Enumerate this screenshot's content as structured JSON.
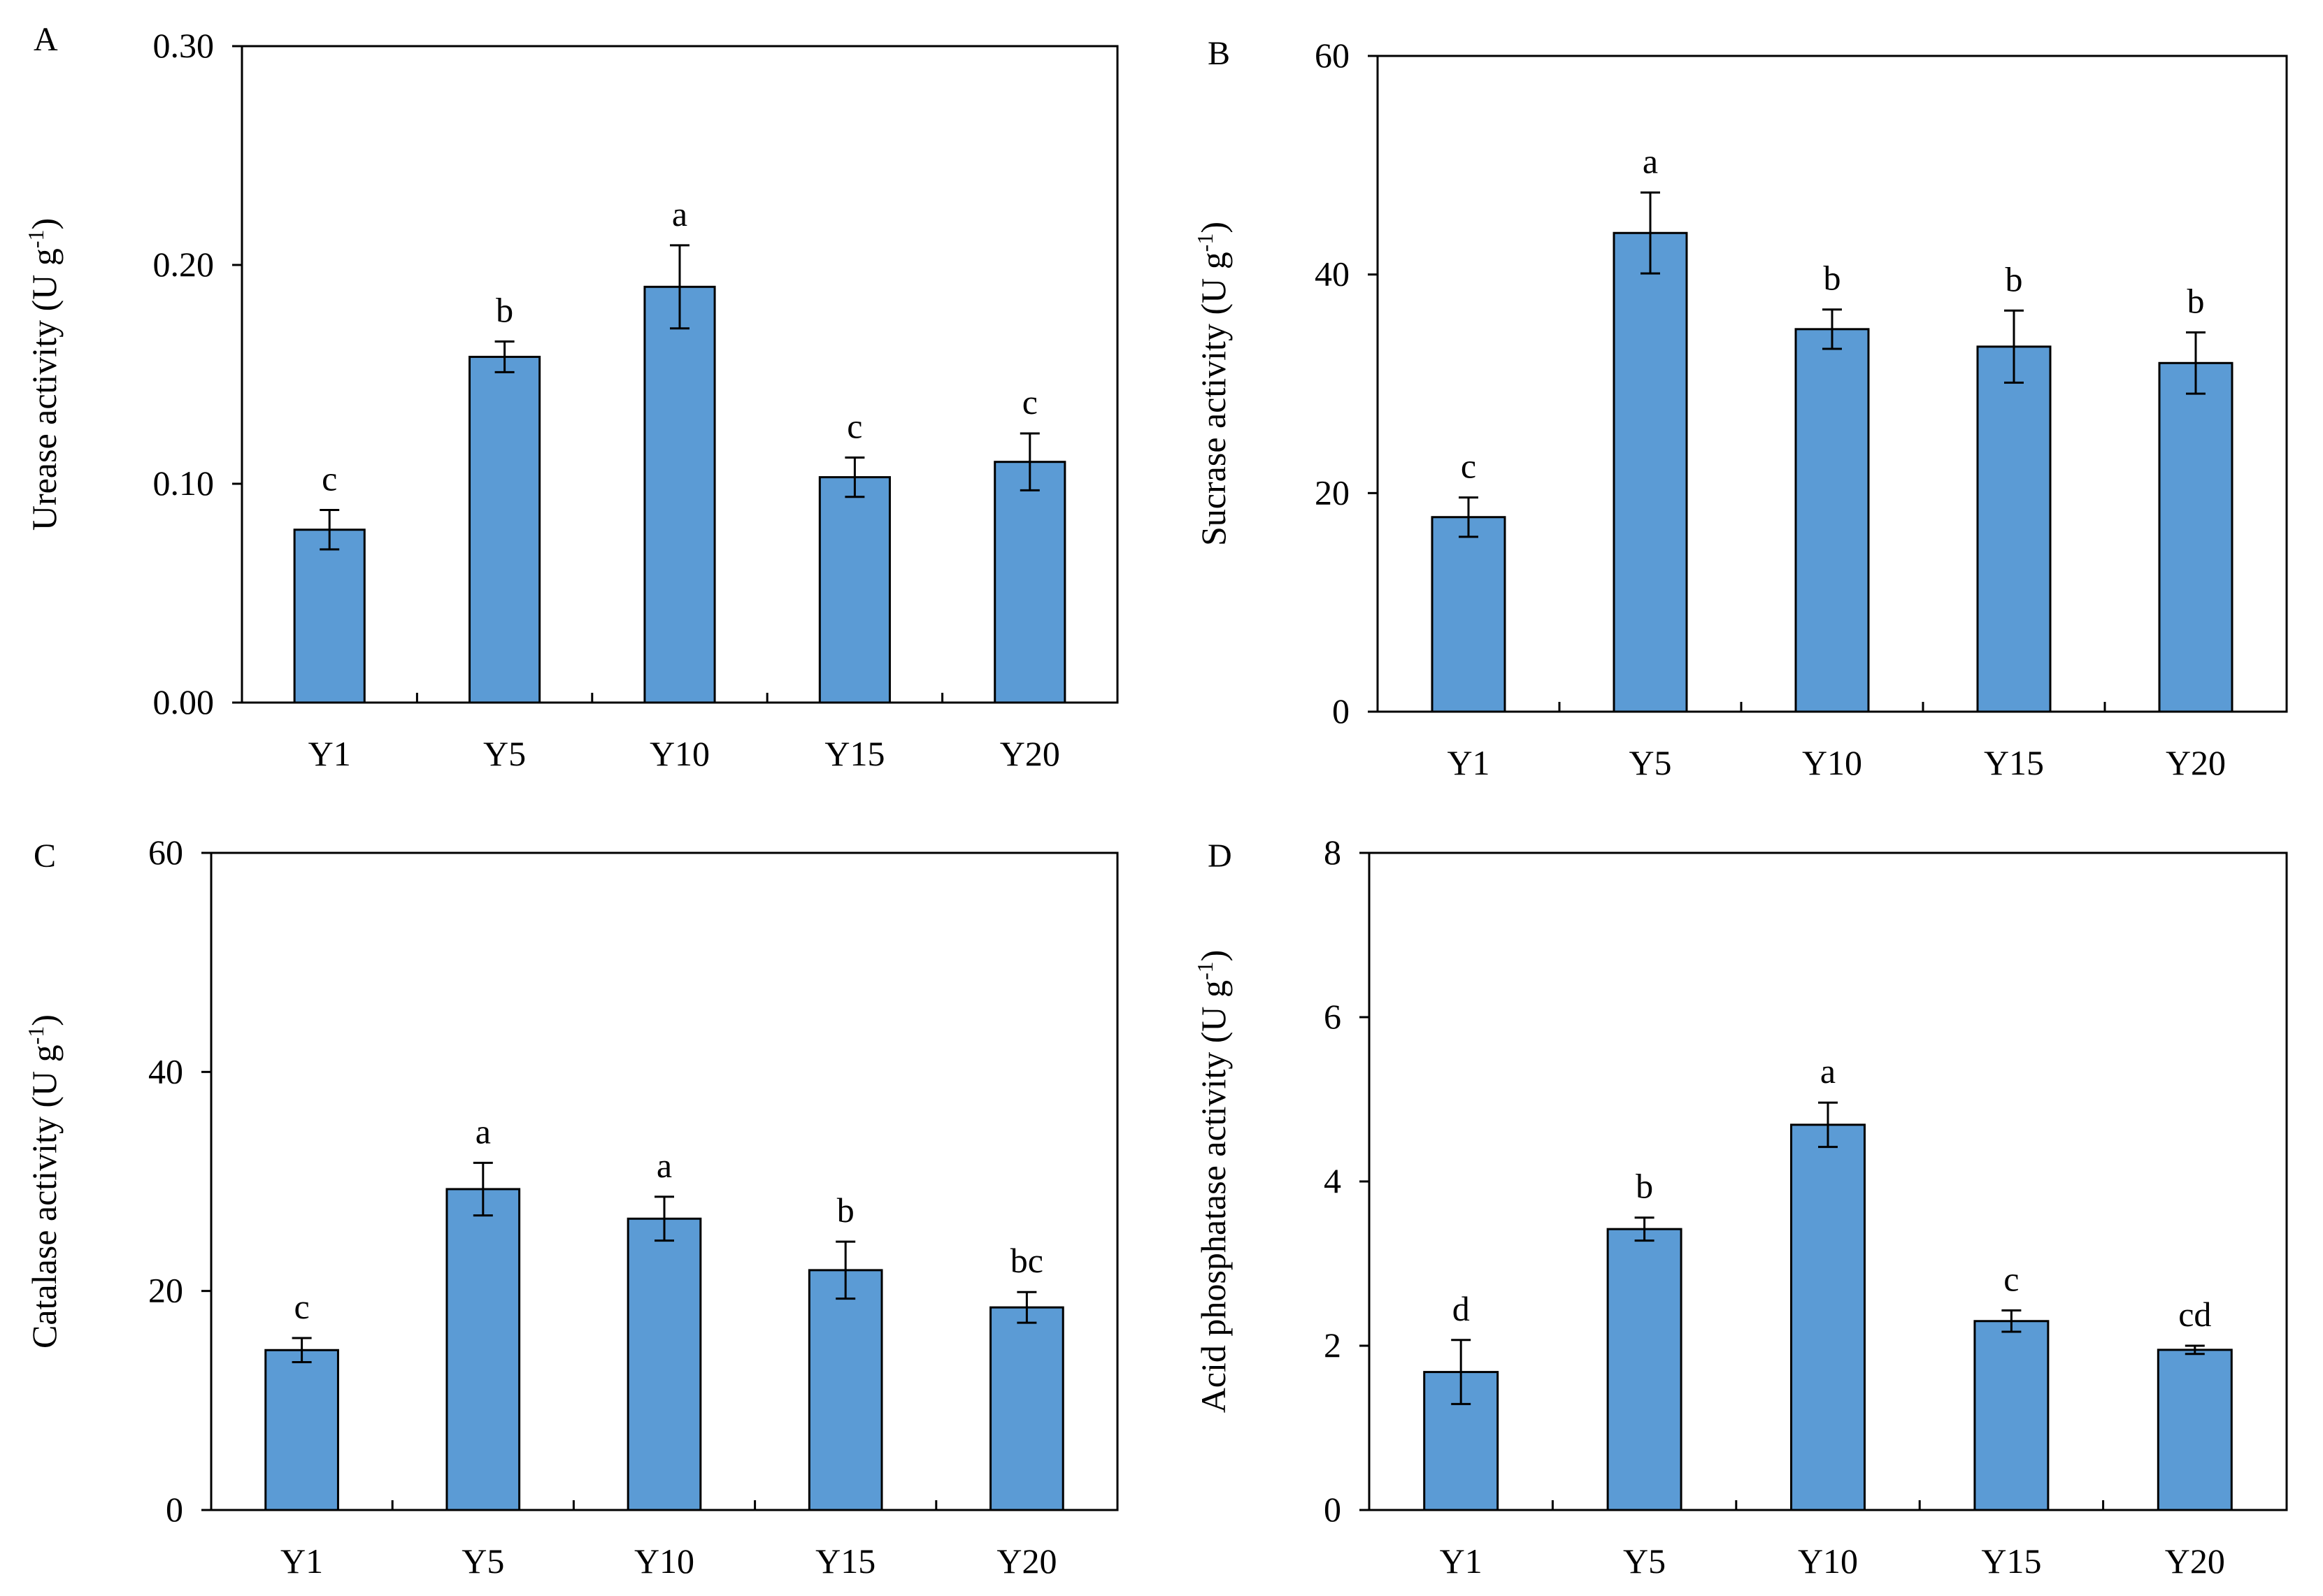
{
  "style": {
    "bar_fill": "#5B9BD5",
    "bar_stroke": "#000000",
    "axis_color": "#000000"
  },
  "chart_data": [
    {
      "panel": "A",
      "type": "bar",
      "categories": [
        "Y1",
        "Y5",
        "Y10",
        "Y15",
        "Y20"
      ],
      "values": [
        0.079,
        0.158,
        0.19,
        0.103,
        0.11
      ],
      "errors": [
        0.009,
        0.007,
        0.019,
        0.009,
        0.013
      ],
      "letters": [
        "c",
        "b",
        "a",
        "c",
        "c"
      ],
      "ylabel": "Urease activity (U g",
      "ylabel_sup": "-1",
      "ylabel_close": ")",
      "ylim": [
        0,
        0.3
      ],
      "yticks": [
        "0.00",
        "0.10",
        "0.20",
        "0.30"
      ],
      "ytick_values": [
        0,
        0.1,
        0.2,
        0.3
      ]
    },
    {
      "panel": "B",
      "type": "bar",
      "categories": [
        "Y1",
        "Y5",
        "Y10",
        "Y15",
        "Y20"
      ],
      "values": [
        17.8,
        43.8,
        35.0,
        33.4,
        31.9
      ],
      "errors": [
        1.8,
        3.7,
        1.8,
        3.3,
        2.8
      ],
      "letters": [
        "c",
        "a",
        "b",
        "b",
        "b"
      ],
      "ylabel": "Sucrase activity (U g",
      "ylabel_sup": "-1",
      "ylabel_close": ")",
      "ylim": [
        0,
        60
      ],
      "yticks": [
        "0",
        "20",
        "40",
        "60"
      ],
      "ytick_values": [
        0,
        20,
        40,
        60
      ]
    },
    {
      "panel": "C",
      "type": "bar",
      "categories": [
        "Y1",
        "Y5",
        "Y10",
        "Y15",
        "Y20"
      ],
      "values": [
        14.6,
        29.3,
        26.6,
        21.9,
        18.5
      ],
      "errors": [
        1.1,
        2.4,
        2.0,
        2.6,
        1.4
      ],
      "letters": [
        "c",
        "a",
        "a",
        "b",
        "bc"
      ],
      "ylabel": "Catalase activity (U g",
      "ylabel_sup": "-1",
      "ylabel_close": ")",
      "ylim": [
        0,
        60
      ],
      "yticks": [
        "0",
        "20",
        "40",
        "60"
      ],
      "ytick_values": [
        0,
        20,
        40,
        60
      ]
    },
    {
      "panel": "D",
      "type": "bar",
      "categories": [
        "Y1",
        "Y5",
        "Y10",
        "Y15",
        "Y20"
      ],
      "values": [
        1.68,
        3.42,
        4.69,
        2.3,
        1.95
      ],
      "errors": [
        0.39,
        0.14,
        0.27,
        0.13,
        0.05
      ],
      "letters": [
        "d",
        "b",
        "a",
        "c",
        "cd"
      ],
      "ylabel": "Acid phosphatase activity (U g",
      "ylabel_sup": "-1",
      "ylabel_close": ")",
      "ylim": [
        0,
        8
      ],
      "yticks": [
        "0",
        "2",
        "4",
        "6",
        "8"
      ],
      "ytick_values": [
        0,
        2,
        4,
        6,
        8
      ]
    }
  ]
}
